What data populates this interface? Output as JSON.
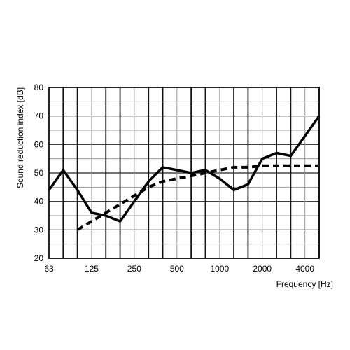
{
  "chart_data": {
    "type": "line",
    "title": "",
    "xlabel": "Frequency [Hz]",
    "ylabel": "Sound reduction index [dB]",
    "x_scale": "log-third-octave",
    "x_range": [
      63,
      5000
    ],
    "ylim": [
      20,
      80
    ],
    "yticks": [
      20,
      30,
      40,
      50,
      60,
      70,
      80
    ],
    "xticks": [
      {
        "value": 63,
        "label": "63"
      },
      {
        "value": 125,
        "label": "125"
      },
      {
        "value": 250,
        "label": "250"
      },
      {
        "value": 500,
        "label": "500"
      },
      {
        "value": 1000,
        "label": "1000"
      },
      {
        "value": 2000,
        "label": "2000"
      },
      {
        "value": 4000,
        "label": "4000"
      }
    ],
    "grid": true,
    "legend": "none",
    "series": [
      {
        "style": "solid",
        "color": "#000000",
        "points": [
          {
            "x": 63,
            "y": 44
          },
          {
            "x": 80,
            "y": 51
          },
          {
            "x": 100,
            "y": 44
          },
          {
            "x": 125,
            "y": 36
          },
          {
            "x": 160,
            "y": 35
          },
          {
            "x": 200,
            "y": 33
          },
          {
            "x": 250,
            "y": 40
          },
          {
            "x": 315,
            "y": 47
          },
          {
            "x": 400,
            "y": 52
          },
          {
            "x": 500,
            "y": 51
          },
          {
            "x": 630,
            "y": 50
          },
          {
            "x": 800,
            "y": 51
          },
          {
            "x": 1000,
            "y": 48
          },
          {
            "x": 1250,
            "y": 44
          },
          {
            "x": 1600,
            "y": 46
          },
          {
            "x": 2000,
            "y": 55
          },
          {
            "x": 2500,
            "y": 57
          },
          {
            "x": 3150,
            "y": 56
          },
          {
            "x": 4000,
            "y": 63
          },
          {
            "x": 5000,
            "y": 70
          }
        ]
      },
      {
        "style": "dashed",
        "color": "#000000",
        "points": [
          {
            "x": 100,
            "y": 30
          },
          {
            "x": 125,
            "y": 33
          },
          {
            "x": 160,
            "y": 36
          },
          {
            "x": 200,
            "y": 39
          },
          {
            "x": 250,
            "y": 42
          },
          {
            "x": 315,
            "y": 45
          },
          {
            "x": 400,
            "y": 47
          },
          {
            "x": 500,
            "y": 48
          },
          {
            "x": 630,
            "y": 49
          },
          {
            "x": 800,
            "y": 50
          },
          {
            "x": 1000,
            "y": 51
          },
          {
            "x": 1250,
            "y": 52
          },
          {
            "x": 1600,
            "y": 52
          },
          {
            "x": 2000,
            "y": 52.5
          },
          {
            "x": 2500,
            "y": 52.5
          },
          {
            "x": 3150,
            "y": 52.5
          },
          {
            "x": 4000,
            "y": 52.5
          },
          {
            "x": 5000,
            "y": 52.5
          }
        ]
      }
    ]
  }
}
